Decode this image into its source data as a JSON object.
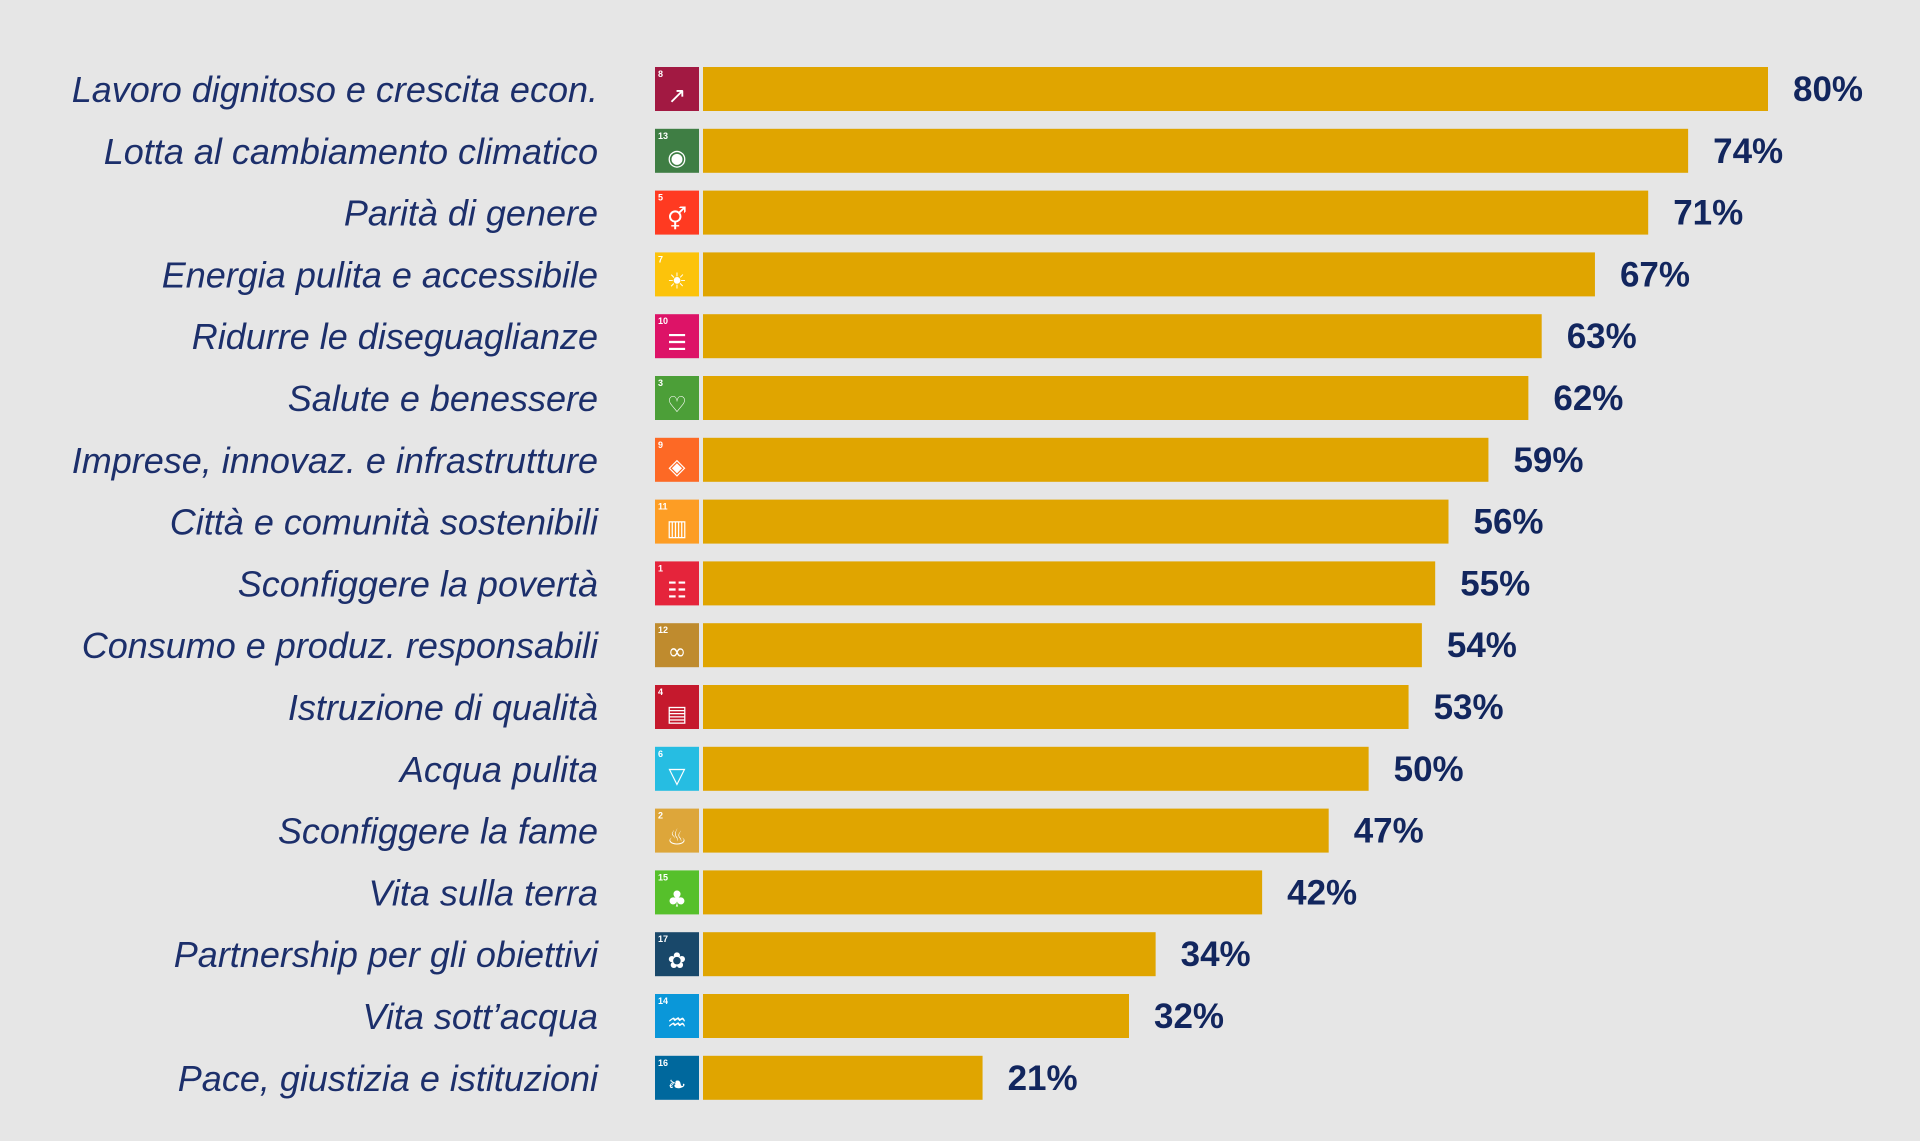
{
  "chart_data": {
    "type": "bar",
    "orientation": "horizontal",
    "title": "",
    "xlabel": "",
    "ylabel": "",
    "value_suffix": "%",
    "xlim": [
      0,
      100
    ],
    "grid": false,
    "bar_color": "#e0a500",
    "label_color": "#1c2f6b",
    "value_color": "#12265e",
    "background": "#e6e6e6",
    "categories": [
      "Lavoro dignitoso e crescita econ.",
      "Lotta al cambiamento climatico",
      "Parità di genere",
      "Energia pulita e accessibile",
      "Ridurre le diseguaglianze",
      "Salute e benessere",
      "Imprese, innovaz. e infrastrutture",
      "Città e comunità sostenibili",
      "Sconfiggere la povertà",
      "Consumo e produz. responsabili",
      "Istruzione di qualità",
      "Acqua pulita",
      "Sconfiggere la fame",
      "Vita sulla terra",
      "Partnership per gli obiettivi",
      "Vita sott’acqua",
      "Pace, giustizia e istituzioni"
    ],
    "values": [
      80,
      74,
      71,
      67,
      63,
      62,
      59,
      56,
      55,
      54,
      53,
      50,
      47,
      42,
      34,
      32,
      21
    ],
    "icons": [
      {
        "goal": 8,
        "name": "sdg-8-growth-icon",
        "color": "#a21942"
      },
      {
        "goal": 13,
        "name": "sdg-13-climate-eye-icon",
        "color": "#3f7e44"
      },
      {
        "goal": 5,
        "name": "sdg-5-gender-icon",
        "color": "#ff3a21"
      },
      {
        "goal": 7,
        "name": "sdg-7-sun-icon",
        "color": "#fcc30b"
      },
      {
        "goal": 10,
        "name": "sdg-10-inequality-icon",
        "color": "#dd1367"
      },
      {
        "goal": 3,
        "name": "sdg-3-heartbeat-icon",
        "color": "#4c9f38"
      },
      {
        "goal": 9,
        "name": "sdg-9-cubes-icon",
        "color": "#fd6925"
      },
      {
        "goal": 11,
        "name": "sdg-11-city-icon",
        "color": "#fd9d24"
      },
      {
        "goal": 1,
        "name": "sdg-1-people-icon",
        "color": "#e5243b"
      },
      {
        "goal": 12,
        "name": "sdg-12-infinity-icon",
        "color": "#bf8b2e"
      },
      {
        "goal": 4,
        "name": "sdg-4-book-icon",
        "color": "#c5192d"
      },
      {
        "goal": 6,
        "name": "sdg-6-water-icon",
        "color": "#26bde2"
      },
      {
        "goal": 2,
        "name": "sdg-2-bowl-icon",
        "color": "#dda63a"
      },
      {
        "goal": 15,
        "name": "sdg-15-tree-icon",
        "color": "#56c02b"
      },
      {
        "goal": 17,
        "name": "sdg-17-flower-icon",
        "color": "#19486a"
      },
      {
        "goal": 14,
        "name": "sdg-14-fish-icon",
        "color": "#0a97d9"
      },
      {
        "goal": 16,
        "name": "sdg-16-dove-icon",
        "color": "#00689d"
      }
    ]
  }
}
